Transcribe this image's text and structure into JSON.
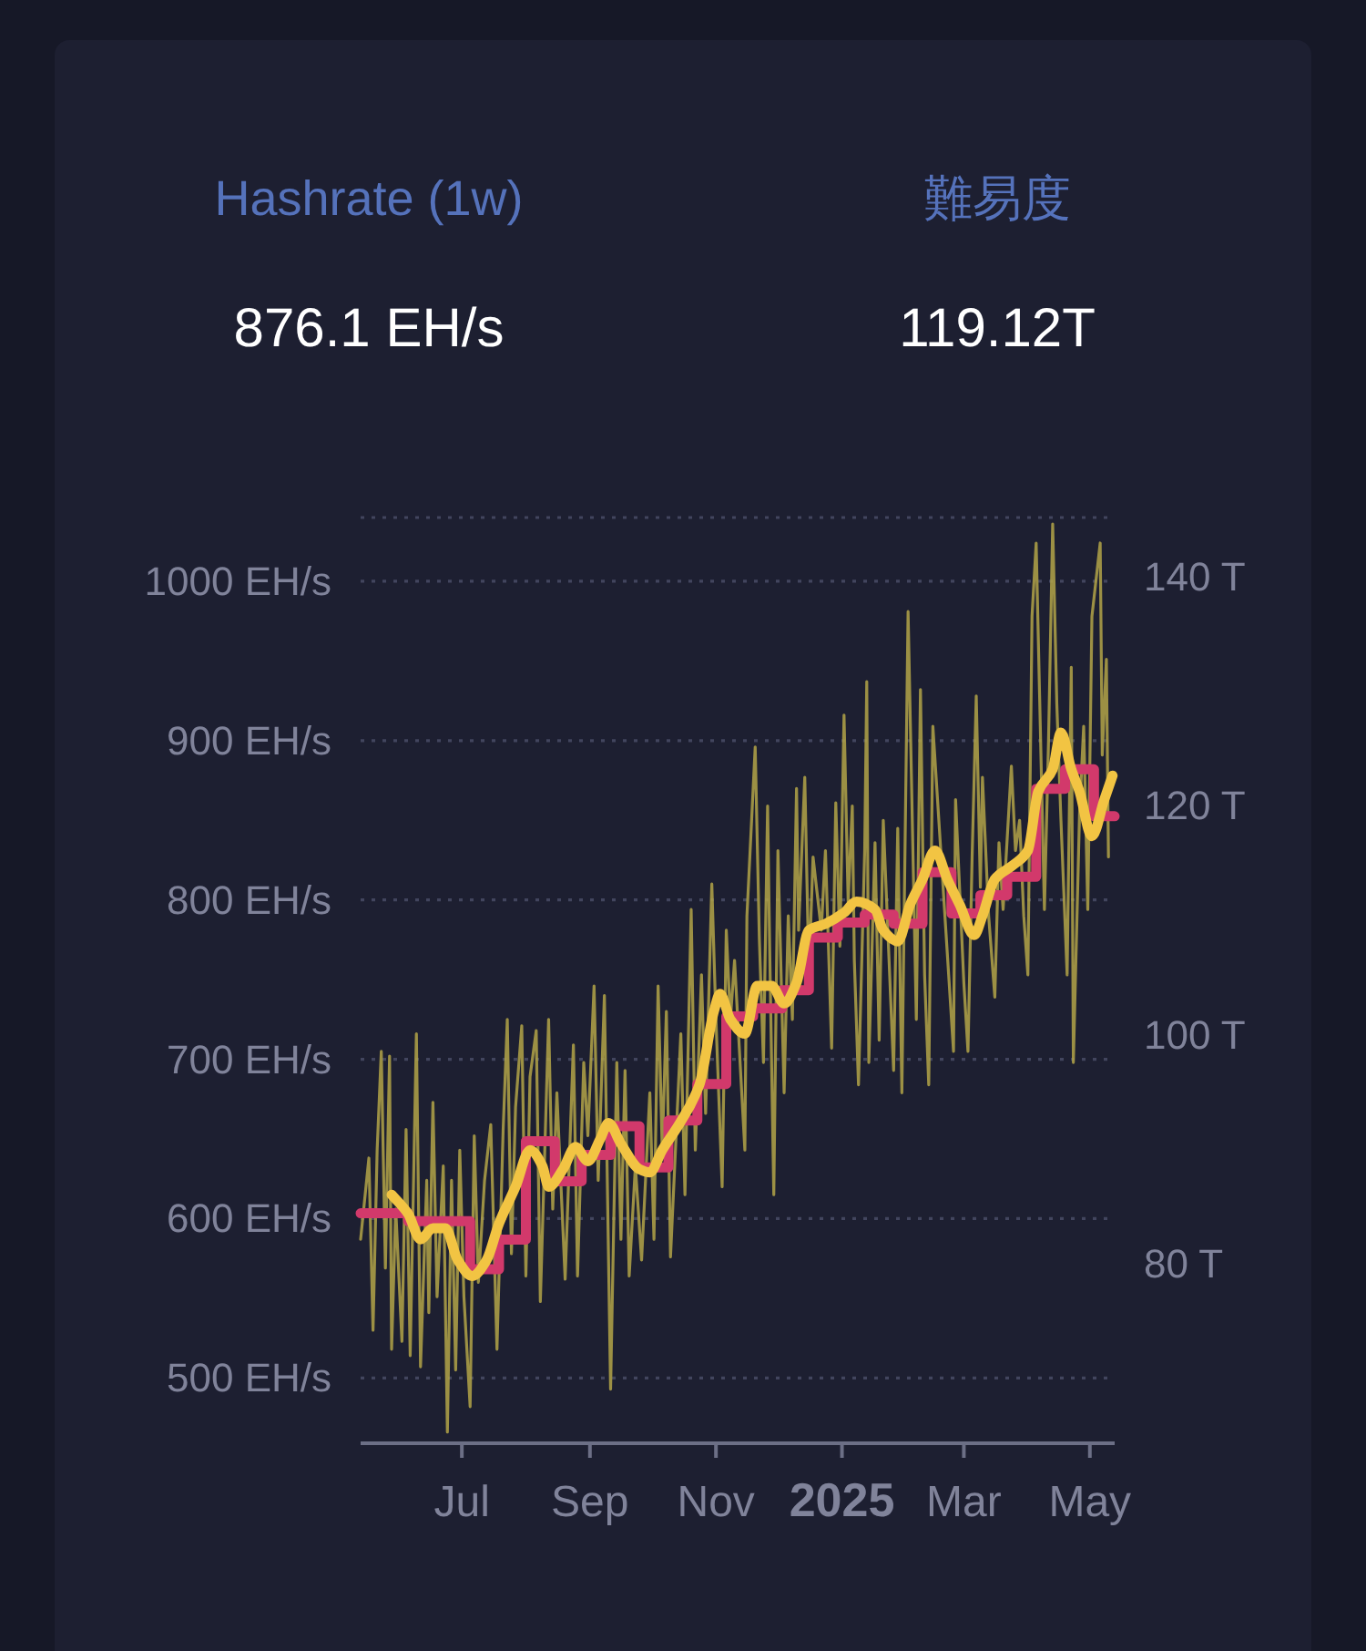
{
  "chart_data": {
    "type": "line",
    "annotations": [
      "Hashrate (1w)",
      "876.1 EH/s",
      "難易度",
      "119.12T"
    ],
    "xlim": [
      "2024-05-13",
      "2025-05-13"
    ],
    "xticks": [
      {
        "value": "2024-07-01",
        "label": "Jul"
      },
      {
        "value": "2024-09-01",
        "label": "Sep"
      },
      {
        "value": "2024-11-01",
        "label": "Nov"
      },
      {
        "value": "2025-01-01",
        "label": "2025"
      },
      {
        "value": "2025-03-01",
        "label": "Mar"
      },
      {
        "value": "2025-05-01",
        "label": "May"
      }
    ],
    "ylim": [
      459,
      1040
    ],
    "yticks": [
      {
        "value": 500,
        "label": "500 EH/s"
      },
      {
        "value": 600,
        "label": "600 EH/s"
      },
      {
        "value": 700,
        "label": "700 EH/s"
      },
      {
        "value": 800,
        "label": "800 EH/s"
      },
      {
        "value": 900,
        "label": "900 EH/s"
      },
      {
        "value": 1000,
        "label": "1000 EH/s"
      },
      {
        "value": 1040,
        "label": null
      }
    ],
    "y2lim": [
      64.3,
      145.2
    ],
    "y2ticks": [
      {
        "value": 80,
        "label": "80 T"
      },
      {
        "value": 100,
        "label": "100 T"
      },
      {
        "value": 120,
        "label": "120 T"
      },
      {
        "value": 140,
        "label": "140 T"
      }
    ],
    "grid": "y",
    "series": [
      {
        "color": "#b3a448",
        "x": [
          "2024-05-13",
          "2024-05-17",
          "2024-05-19",
          "2024-05-21",
          "2024-05-23",
          "2024-05-25",
          "2024-05-27",
          "2024-05-28",
          "2024-05-30",
          "2024-06-02",
          "2024-06-04",
          "2024-06-06",
          "2024-06-09",
          "2024-06-11",
          "2024-06-14",
          "2024-06-15",
          "2024-06-17",
          "2024-06-19",
          "2024-06-22",
          "2024-06-24",
          "2024-06-26",
          "2024-06-28",
          "2024-06-30",
          "2024-07-02",
          "2024-07-05",
          "2024-07-07",
          "2024-07-09",
          "2024-07-12",
          "2024-07-15",
          "2024-07-18",
          "2024-07-21",
          "2024-07-23",
          "2024-07-25",
          "2024-07-27",
          "2024-07-30",
          "2024-08-01",
          "2024-08-03",
          "2024-08-06",
          "2024-08-08",
          "2024-08-12",
          "2024-08-14",
          "2024-08-16",
          "2024-08-20",
          "2024-08-24",
          "2024-08-26",
          "2024-08-29",
          "2024-08-31",
          "2024-09-03",
          "2024-09-05",
          "2024-09-08",
          "2024-09-11",
          "2024-09-14",
          "2024-09-16",
          "2024-09-18",
          "2024-09-20",
          "2024-09-23",
          "2024-09-26",
          "2024-09-30",
          "2024-10-02",
          "2024-10-04",
          "2024-10-06",
          "2024-10-08",
          "2024-10-10",
          "2024-10-15",
          "2024-10-17",
          "2024-10-20",
          "2024-10-22",
          "2024-10-25",
          "2024-10-27",
          "2024-10-30",
          "2024-11-01",
          "2024-11-04",
          "2024-11-06",
          "2024-11-08",
          "2024-11-10",
          "2024-11-15",
          "2024-11-16",
          "2024-11-20",
          "2024-11-22",
          "2024-11-24",
          "2024-11-26",
          "2024-11-27",
          "2024-11-29",
          "2024-12-01",
          "2024-12-04",
          "2024-12-06",
          "2024-12-08",
          "2024-12-10",
          "2024-12-11",
          "2024-12-14",
          "2024-12-16",
          "2024-12-18",
          "2024-12-22",
          "2024-12-24",
          "2024-12-27",
          "2024-12-29",
          "2024-12-31",
          "2025-01-02",
          "2025-01-04",
          "2025-01-06",
          "2025-01-07",
          "2025-01-09",
          "2025-01-12",
          "2025-01-13",
          "2025-01-14",
          "2025-01-17",
          "2025-01-19",
          "2025-01-21",
          "2025-01-26",
          "2025-01-28",
          "2025-01-30",
          "2025-02-02",
          "2025-02-06",
          "2025-02-08",
          "2025-02-10",
          "2025-02-12",
          "2025-02-14",
          "2025-02-24",
          "2025-02-25",
          "2025-03-01",
          "2025-03-03",
          "2025-03-05",
          "2025-03-07",
          "2025-03-09",
          "2025-03-10",
          "2025-03-13",
          "2025-03-16",
          "2025-03-18",
          "2025-03-20",
          "2025-03-24",
          "2025-03-26",
          "2025-03-28",
          "2025-03-30",
          "2025-04-01",
          "2025-04-03",
          "2025-04-05",
          "2025-04-07",
          "2025-04-09",
          "2025-04-11",
          "2025-04-13",
          "2025-04-15",
          "2025-04-17",
          "2025-04-20",
          "2025-04-22",
          "2025-04-23",
          "2025-04-26",
          "2025-04-28",
          "2025-04-30",
          "2025-05-02",
          "2025-05-06",
          "2025-05-07",
          "2025-05-09",
          "2025-05-10"
        ],
        "values": [
          587,
          638,
          530,
          643,
          705,
          569,
          702,
          518,
          606,
          523,
          656,
          514,
          716,
          507,
          624,
          541,
          673,
          551,
          633,
          466,
          624,
          505,
          643,
          551,
          482,
          652,
          560,
          624,
          659,
          518,
          656,
          725,
          578,
          670,
          721,
          564,
          689,
          718,
          548,
          725,
          606,
          679,
          562,
          709,
          564,
          698,
          652,
          746,
          624,
          740,
          493,
          698,
          587,
          693,
          564,
          633,
          574,
          679,
          587,
          746,
          643,
          730,
          576,
          716,
          615,
          794,
          643,
          753,
          666,
          810,
          725,
          620,
          781,
          725,
          762,
          643,
          790,
          896,
          776,
          698,
          859,
          771,
          615,
          831,
          679,
          790,
          725,
          870,
          781,
          877,
          753,
          827,
          781,
          831,
          707,
          861,
          771,
          916,
          799,
          859,
          762,
          684,
          831,
          937,
          698,
          836,
          712,
          850,
          693,
          845,
          679,
          981,
          725,
          932,
          753,
          684,
          909,
          705,
          863,
          748,
          705,
          827,
          928,
          808,
          877,
          790,
          739,
          836,
          794,
          884,
          831,
          850,
          790,
          753,
          978,
          1024,
          909,
          794,
          900,
          1036,
          923,
          850,
          753,
          946,
          698,
          854,
          909,
          794,
          978,
          1024,
          891,
          951,
          827
        ]
      },
      {
        "type": "step",
        "axis": "y2",
        "color": "#d2396b",
        "x": [
          "2024-05-13",
          "2024-06-05",
          "2024-07-05",
          "2024-07-19",
          "2024-08-01",
          "2024-08-15",
          "2024-08-28",
          "2024-09-11",
          "2024-09-25",
          "2024-10-09",
          "2024-10-23",
          "2024-11-06",
          "2024-11-19",
          "2024-12-03",
          "2024-12-16",
          "2024-12-30",
          "2025-01-12",
          "2025-01-26",
          "2025-02-09",
          "2025-02-23",
          "2025-03-09",
          "2025-03-22",
          "2025-04-05",
          "2025-04-19",
          "2025-05-03",
          "2025-05-13"
        ],
        "values": [
          84.4,
          83.7,
          79.5,
          82.1,
          90.7,
          87.2,
          89.5,
          92.0,
          88.4,
          92.5,
          95.7,
          101.6,
          102.3,
          103.9,
          108.5,
          109.8,
          110.5,
          109.7,
          114.2,
          110.6,
          112.2,
          113.8,
          121.5,
          123.2,
          119.1,
          119.1
        ]
      },
      {
        "color": "#f2c443",
        "x": [
          "2024-05-28",
          "2024-06-05",
          "2024-06-11",
          "2024-06-17",
          "2024-06-23",
          "2024-06-29",
          "2024-07-06",
          "2024-07-13",
          "2024-07-19",
          "2024-07-27",
          "2024-08-03",
          "2024-08-09",
          "2024-08-12",
          "2024-08-19",
          "2024-08-25",
          "2024-08-31",
          "2024-09-06",
          "2024-09-10",
          "2024-09-16",
          "2024-09-25",
          "2024-09-30",
          "2024-10-06",
          "2024-10-15",
          "2024-10-24",
          "2024-10-31",
          "2024-11-03",
          "2024-11-08",
          "2024-11-15",
          "2024-11-21",
          "2024-11-28",
          "2024-12-04",
          "2024-12-10",
          "2024-12-16",
          "2024-12-24",
          "2025-01-02",
          "2025-01-08",
          "2025-01-17",
          "2025-01-21",
          "2025-01-28",
          "2025-02-03",
          "2025-02-09",
          "2025-02-15",
          "2025-02-21",
          "2025-02-27",
          "2025-03-06",
          "2025-03-10",
          "2025-03-16",
          "2025-03-25",
          "2025-04-01",
          "2025-04-06",
          "2025-04-13",
          "2025-04-17",
          "2025-04-22",
          "2025-04-26",
          "2025-05-02",
          "2025-05-08",
          "2025-05-12"
        ],
        "values": [
          615,
          603,
          587,
          594,
          594,
          574,
          564,
          574,
          597,
          620,
          643,
          633,
          620,
          631,
          645,
          636,
          650,
          660,
          647,
          631,
          629,
          643,
          661,
          684,
          730,
          741,
          725,
          716,
          746,
          746,
          735,
          748,
          781,
          785,
          792,
          799,
          794,
          781,
          774,
          797,
          813,
          831,
          813,
          797,
          778,
          790,
          813,
          822,
          831,
          868,
          882,
          905,
          882,
          868,
          840,
          863,
          878
        ]
      }
    ]
  }
}
